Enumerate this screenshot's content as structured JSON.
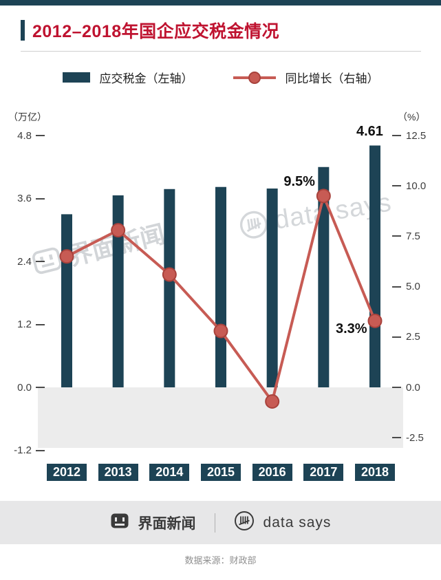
{
  "header": {
    "title": "2012–2018年国企应交税金情况"
  },
  "chart_data": {
    "type": "bar+line combo",
    "categories": [
      "2012",
      "2013",
      "2014",
      "2015",
      "2016",
      "2017",
      "2018"
    ],
    "series": [
      {
        "name": "应交税金（左轴）",
        "type": "bar",
        "axis": "left",
        "unit": "万亿",
        "values": [
          3.3,
          3.66,
          3.78,
          3.82,
          3.79,
          4.2,
          4.61
        ]
      },
      {
        "name": "同比增长（右轴）",
        "type": "line",
        "axis": "right",
        "unit": "%",
        "values": [
          6.5,
          7.8,
          5.6,
          2.8,
          -0.7,
          9.5,
          3.3
        ]
      }
    ],
    "left_axis": {
      "label": "（万亿）",
      "ticks": [
        4.8,
        3.6,
        2.4,
        1.2,
        0.0,
        -1.2
      ],
      "range": [
        -1.2,
        4.8
      ]
    },
    "right_axis": {
      "label": "（%）",
      "ticks": [
        12.5,
        10.0,
        7.5,
        5.0,
        2.5,
        0.0,
        -2.5
      ],
      "range": [
        -2.5,
        12.5
      ]
    },
    "annotations": [
      {
        "text": "4.61",
        "series": "bar",
        "index": 6
      },
      {
        "text": "9.5%",
        "series": "line",
        "index": 5
      },
      {
        "text": "3.3%",
        "series": "line",
        "index": 6
      }
    ],
    "grid": false,
    "legend_position": "top"
  },
  "watermarks": {
    "jiemian": "界面新闻",
    "datasays": "data says"
  },
  "footer": {
    "jiemian": "界面新闻",
    "datasays": "data says",
    "source": "数据来源：财政部"
  },
  "colors": {
    "teal": "#1d4355",
    "title_red": "#bf1330",
    "line_red": "#c75b54",
    "line_red_dark": "#a8423c",
    "neg_region": "#ececec",
    "footer_band": "#e7e7e8"
  }
}
